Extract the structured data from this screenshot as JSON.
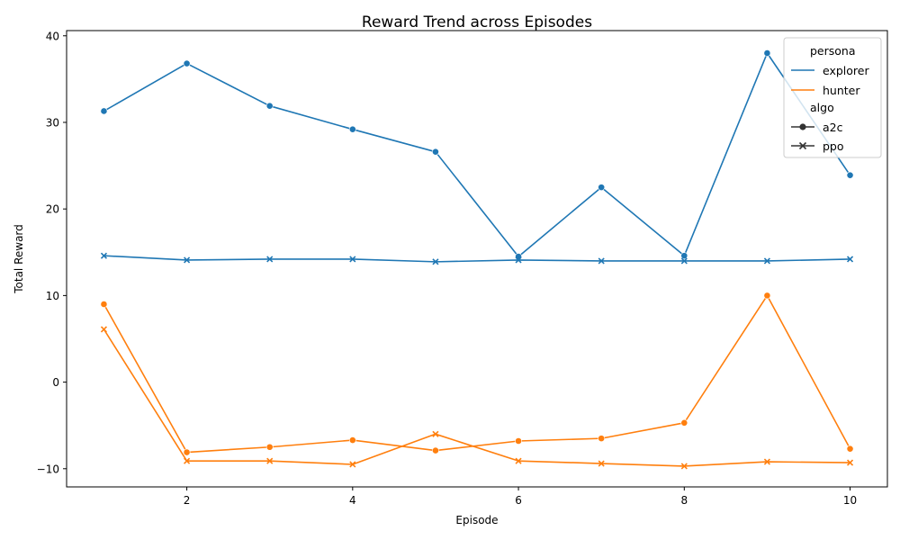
{
  "chart_data": {
    "type": "line",
    "title": "Reward Trend across Episodes",
    "xlabel": "Episode",
    "ylabel": "Total Reward",
    "xlim": [
      0.55,
      10.45
    ],
    "ylim": [
      -12.1,
      40.6
    ],
    "xticks": [
      2,
      4,
      6,
      8,
      10
    ],
    "yticks": [
      -10,
      0,
      10,
      20,
      30,
      40
    ],
    "grid": false,
    "legend_position": "top-right",
    "x": [
      1,
      2,
      3,
      4,
      5,
      6,
      7,
      8,
      9,
      10
    ],
    "series": [
      {
        "persona": "explorer",
        "algo": "a2c",
        "color": "#1f77b4",
        "marker": "circle",
        "values": [
          31.3,
          36.8,
          31.9,
          29.2,
          26.6,
          14.5,
          22.5,
          14.6,
          38.0,
          23.9
        ]
      },
      {
        "persona": "explorer",
        "algo": "ppo",
        "color": "#1f77b4",
        "marker": "x",
        "values": [
          14.6,
          14.1,
          14.2,
          14.2,
          13.9,
          14.1,
          14.0,
          14.0,
          14.0,
          14.2
        ]
      },
      {
        "persona": "hunter",
        "algo": "a2c",
        "color": "#ff7f0e",
        "marker": "circle",
        "values": [
          9.0,
          -8.1,
          -7.5,
          -6.7,
          -7.9,
          -6.8,
          -6.5,
          -4.7,
          10.0,
          -7.7
        ]
      },
      {
        "persona": "hunter",
        "algo": "ppo",
        "color": "#ff7f0e",
        "marker": "x",
        "values": [
          6.1,
          -9.1,
          -9.1,
          -9.5,
          -6.0,
          -9.1,
          -9.4,
          -9.7,
          -9.2,
          -9.3
        ]
      }
    ],
    "legend": {
      "persona_title": "persona",
      "personas": [
        {
          "label": "explorer",
          "color": "#1f77b4"
        },
        {
          "label": "hunter",
          "color": "#ff7f0e"
        }
      ],
      "algo_title": "algo",
      "algos": [
        {
          "label": "a2c",
          "marker": "circle"
        },
        {
          "label": "ppo",
          "marker": "x"
        }
      ]
    }
  }
}
